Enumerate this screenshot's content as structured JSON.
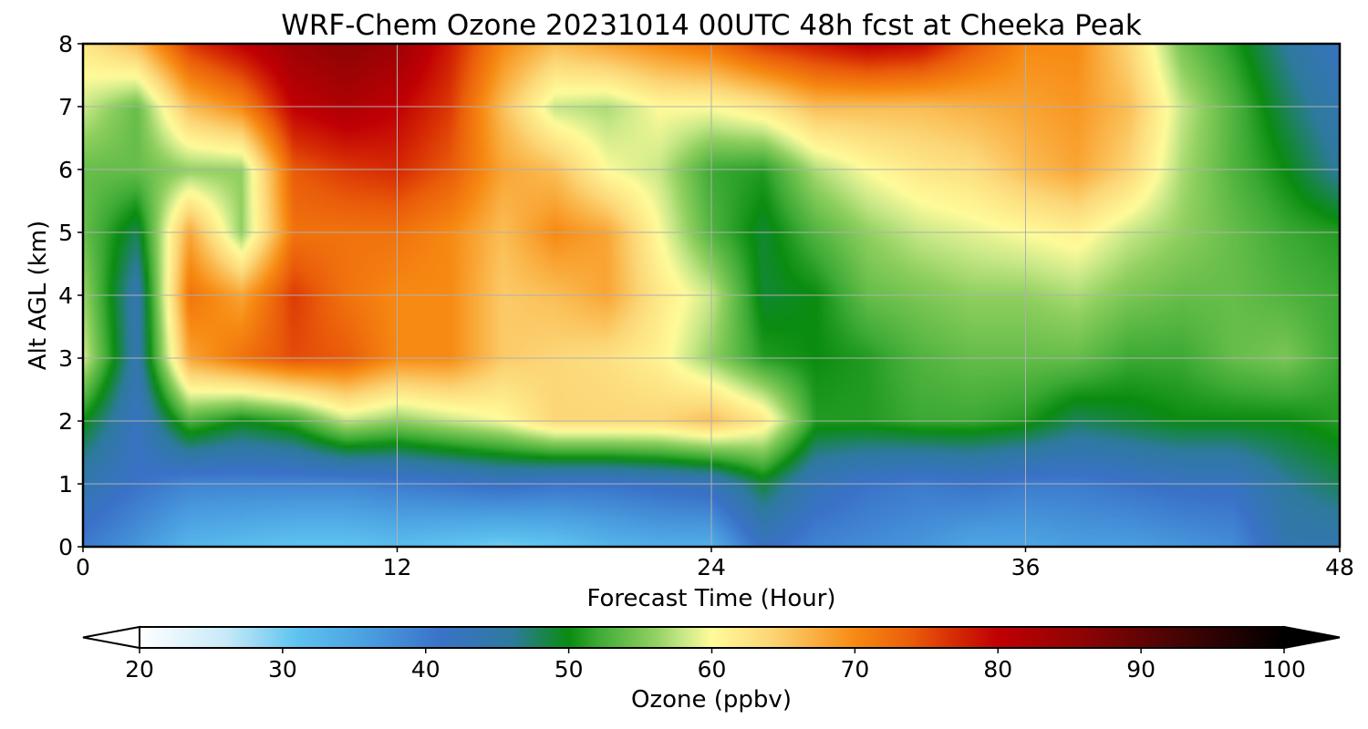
{
  "chart_data": {
    "type": "heatmap",
    "title": "WRF-Chem Ozone  20231014 00UTC 48h fcst at Cheeka Peak",
    "xlabel": "Forecast Time (Hour)",
    "ylabel": "Alt AGL (km)",
    "xlim": [
      0,
      48
    ],
    "ylim": [
      0,
      8
    ],
    "xticks": [
      0,
      12,
      24,
      36,
      48
    ],
    "yticks": [
      0,
      1,
      2,
      3,
      4,
      5,
      6,
      7,
      8
    ],
    "grid": true,
    "x_hours": [
      0,
      2,
      4,
      6,
      8,
      10,
      12,
      14,
      16,
      18,
      20,
      22,
      24,
      26,
      28,
      30,
      32,
      34,
      36,
      38,
      40,
      42,
      44,
      46,
      48
    ],
    "y_km": [
      0,
      1,
      2,
      3,
      4,
      5,
      6,
      7,
      8
    ],
    "ozone_ppbv": [
      [
        40,
        37,
        33,
        32,
        31,
        31,
        32,
        31,
        30,
        31,
        33,
        34,
        34,
        42,
        39,
        38,
        37,
        35,
        35,
        36,
        36,
        37,
        38,
        44,
        44
      ],
      [
        44,
        41,
        39,
        39,
        39,
        39,
        40,
        41,
        42,
        41,
        41,
        42,
        43,
        49,
        43,
        41,
        40,
        41,
        40,
        40,
        41,
        42,
        42,
        46,
        48
      ],
      [
        50,
        42,
        53,
        50,
        52,
        58,
        56,
        58,
        60,
        64,
        64,
        64,
        66,
        62,
        51,
        51,
        52,
        52,
        51,
        48,
        49,
        50,
        50,
        50,
        51
      ],
      [
        58,
        44,
        68,
        72,
        75,
        74,
        70,
        70,
        65,
        64,
        63,
        61,
        56,
        51,
        50,
        51,
        53,
        54,
        54,
        54,
        52,
        52,
        54,
        55,
        52
      ],
      [
        56,
        44,
        72,
        68,
        76,
        72,
        70,
        70,
        65,
        66,
        68,
        62,
        58,
        49,
        50,
        54,
        55,
        56,
        56,
        57,
        55,
        54,
        54,
        53,
        52
      ],
      [
        54,
        48,
        68,
        56,
        72,
        72,
        72,
        70,
        66,
        70,
        68,
        60,
        53,
        49,
        53,
        56,
        58,
        59,
        60,
        61,
        58,
        56,
        54,
        52,
        51
      ],
      [
        54,
        54,
        56,
        56,
        74,
        76,
        77,
        74,
        68,
        66,
        60,
        58,
        52,
        51,
        57,
        60,
        62,
        63,
        66,
        68,
        64,
        57,
        53,
        50,
        46
      ],
      [
        58,
        54,
        66,
        70,
        80,
        82,
        80,
        76,
        66,
        58,
        57,
        60,
        60,
        62,
        66,
        66,
        66,
        67,
        68,
        69,
        66,
        58,
        53,
        48,
        44
      ],
      [
        62,
        66,
        76,
        80,
        84,
        86,
        84,
        78,
        70,
        66,
        68,
        70,
        72,
        76,
        78,
        80,
        79,
        74,
        70,
        70,
        64,
        55,
        51,
        46,
        42
      ]
    ],
    "colorbar": {
      "label": "Ozone  (ppbv)",
      "min": 20,
      "max": 100,
      "ticks": [
        20,
        30,
        40,
        50,
        60,
        70,
        80,
        90,
        100
      ],
      "extend": "both",
      "color_stops": [
        [
          20,
          "#ffffff"
        ],
        [
          26,
          "#c8eaf8"
        ],
        [
          31,
          "#5ec3f0"
        ],
        [
          36,
          "#4a9ee0"
        ],
        [
          41,
          "#3a72c8"
        ],
        [
          46,
          "#2e7a9e"
        ],
        [
          50,
          "#0a8c10"
        ],
        [
          52,
          "#3caa34"
        ],
        [
          56,
          "#90d060"
        ],
        [
          58,
          "#c8e888"
        ],
        [
          60,
          "#fffb9a"
        ],
        [
          64,
          "#fcd778"
        ],
        [
          67,
          "#fab245"
        ],
        [
          70,
          "#f78a12"
        ],
        [
          74,
          "#ea5c0a"
        ],
        [
          77,
          "#d62a04"
        ],
        [
          80,
          "#c00004"
        ],
        [
          86,
          "#8c0404"
        ],
        [
          92,
          "#4c0404"
        ],
        [
          100,
          "#000000"
        ]
      ]
    }
  }
}
